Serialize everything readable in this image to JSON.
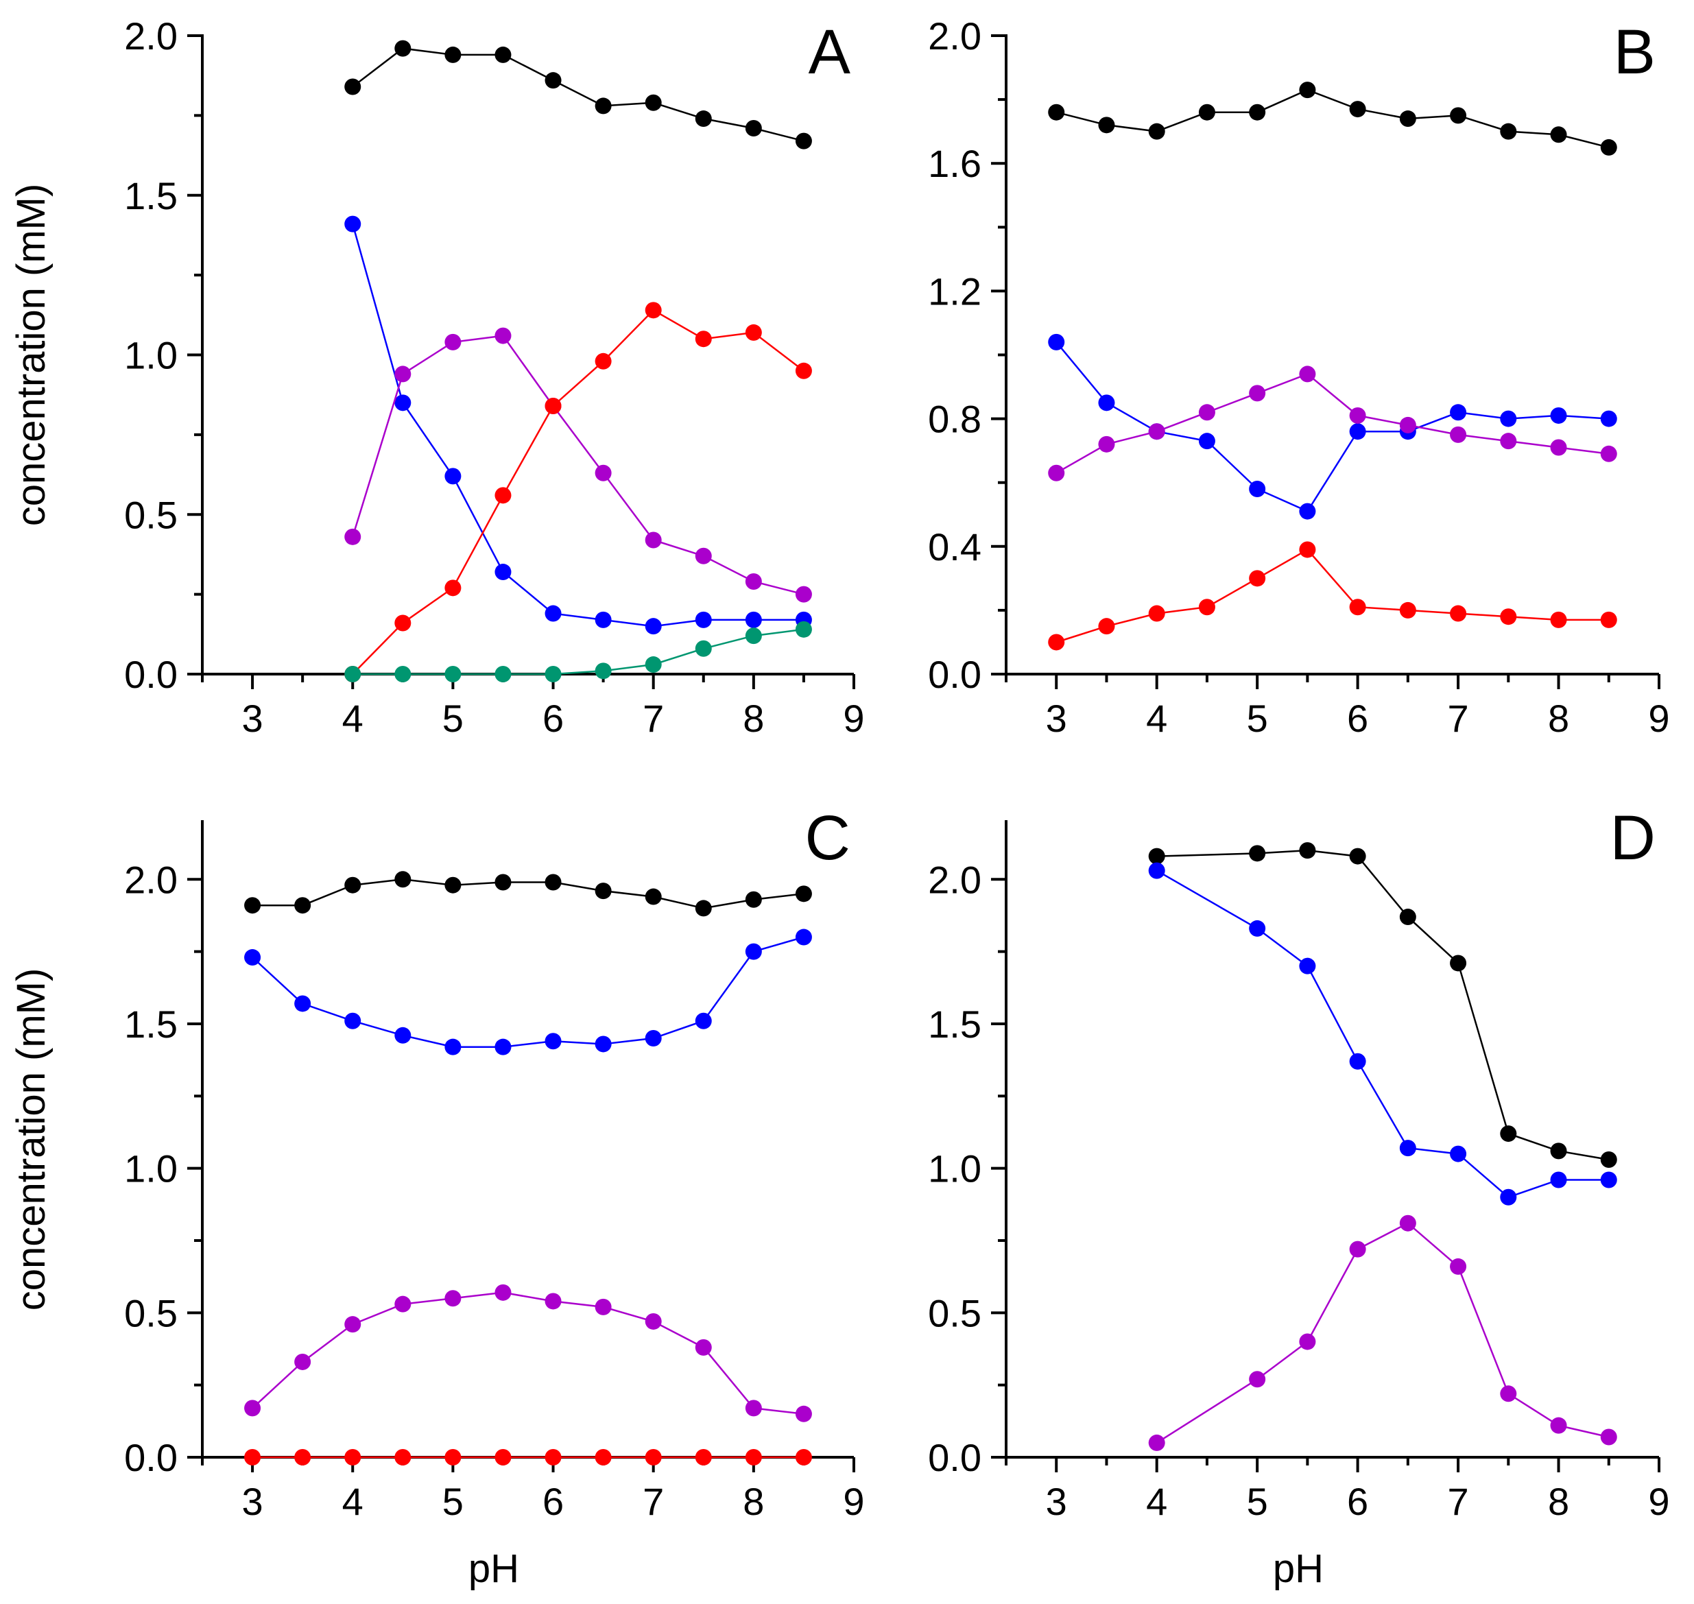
{
  "colors": {
    "black": "#000000",
    "blue": "#0000ff",
    "magenta": "#aa00cc",
    "red": "#ff0000",
    "green": "#009670"
  },
  "chart_data": [
    {
      "panel": "A",
      "type": "line",
      "xlabel": "",
      "ylabel": "concentration (mM)",
      "xlim": [
        2.5,
        9
      ],
      "ylim": [
        0,
        2
      ],
      "xticks": [
        "3",
        "4",
        "5",
        "6",
        "7",
        "8",
        "9"
      ],
      "yticks": [
        "0.0",
        "0.5",
        "1.0",
        "1.5",
        "2.0"
      ],
      "series": [
        {
          "color": "black",
          "x": [
            4,
            4.5,
            5,
            5.5,
            6,
            6.5,
            7,
            7.5,
            8,
            8.5
          ],
          "values": [
            1.84,
            1.96,
            1.94,
            1.94,
            1.86,
            1.78,
            1.79,
            1.74,
            1.71,
            1.67
          ]
        },
        {
          "color": "blue",
          "x": [
            4,
            4.5,
            5,
            5.5,
            6,
            6.5,
            7,
            7.5,
            8,
            8.5
          ],
          "values": [
            1.41,
            0.85,
            0.62,
            0.32,
            0.19,
            0.17,
            0.15,
            0.17,
            0.17,
            0.17
          ]
        },
        {
          "color": "magenta",
          "x": [
            4,
            4.5,
            5,
            5.5,
            6,
            6.5,
            7,
            7.5,
            8,
            8.5
          ],
          "values": [
            0.43,
            0.94,
            1.04,
            1.06,
            0.84,
            0.63,
            0.42,
            0.37,
            0.29,
            0.25
          ]
        },
        {
          "color": "red",
          "x": [
            4,
            4.5,
            5,
            5.5,
            6,
            6.5,
            7,
            7.5,
            8,
            8.5
          ],
          "values": [
            0.0,
            0.16,
            0.27,
            0.56,
            0.84,
            0.98,
            1.14,
            1.05,
            1.07,
            0.95
          ]
        },
        {
          "color": "green",
          "x": [
            4,
            4.5,
            5,
            5.5,
            6,
            6.5,
            7,
            7.5,
            8,
            8.5
          ],
          "values": [
            0.0,
            0.0,
            0.0,
            0.0,
            0.0,
            0.01,
            0.03,
            0.08,
            0.12,
            0.14
          ]
        }
      ]
    },
    {
      "panel": "B",
      "type": "line",
      "xlabel": "",
      "ylabel": "",
      "xlim": [
        2.5,
        9
      ],
      "ylim": [
        0,
        2
      ],
      "xticks": [
        "3",
        "4",
        "5",
        "6",
        "7",
        "8",
        "9"
      ],
      "yticks": [
        "0.0",
        "0.4",
        "0.8",
        "1.2",
        "1.6",
        "2.0"
      ],
      "series": [
        {
          "color": "black",
          "x": [
            3,
            3.5,
            4,
            4.5,
            5,
            5.5,
            6,
            6.5,
            7,
            7.5,
            8,
            8.5
          ],
          "values": [
            1.76,
            1.72,
            1.7,
            1.76,
            1.76,
            1.83,
            1.77,
            1.74,
            1.75,
            1.7,
            1.69,
            1.65
          ]
        },
        {
          "color": "blue",
          "x": [
            3,
            3.5,
            4,
            4.5,
            5,
            5.5,
            6,
            6.5,
            7,
            7.5,
            8,
            8.5
          ],
          "values": [
            1.04,
            0.85,
            0.76,
            0.73,
            0.58,
            0.51,
            0.76,
            0.76,
            0.82,
            0.8,
            0.81,
            0.8
          ]
        },
        {
          "color": "magenta",
          "x": [
            3,
            3.5,
            4,
            4.5,
            5,
            5.5,
            6,
            6.5,
            7,
            7.5,
            8,
            8.5
          ],
          "values": [
            0.63,
            0.72,
            0.76,
            0.82,
            0.88,
            0.94,
            0.81,
            0.78,
            0.75,
            0.73,
            0.71,
            0.69
          ]
        },
        {
          "color": "red",
          "x": [
            3,
            3.5,
            4,
            4.5,
            5,
            5.5,
            6,
            6.5,
            7,
            7.5,
            8,
            8.5
          ],
          "values": [
            0.1,
            0.15,
            0.19,
            0.21,
            0.3,
            0.39,
            0.21,
            0.2,
            0.19,
            0.18,
            0.17,
            0.17
          ]
        }
      ]
    },
    {
      "panel": "C",
      "type": "line",
      "xlabel": "pH",
      "ylabel": "concentration (mM)",
      "xlim": [
        2.5,
        9
      ],
      "ylim": [
        0,
        2.2
      ],
      "xticks": [
        "3",
        "4",
        "5",
        "6",
        "7",
        "8",
        "9"
      ],
      "yticks": [
        "0.0",
        "0.5",
        "1.0",
        "1.5",
        "2.0"
      ],
      "series": [
        {
          "color": "black",
          "x": [
            3,
            3.5,
            4,
            4.5,
            5,
            5.5,
            6,
            6.5,
            7,
            7.5,
            8,
            8.5
          ],
          "values": [
            1.91,
            1.91,
            1.98,
            2.0,
            1.98,
            1.99,
            1.99,
            1.96,
            1.94,
            1.9,
            1.93,
            1.95
          ]
        },
        {
          "color": "blue",
          "x": [
            3,
            3.5,
            4,
            4.5,
            5,
            5.5,
            6,
            6.5,
            7,
            7.5,
            8,
            8.5
          ],
          "values": [
            1.73,
            1.57,
            1.51,
            1.46,
            1.42,
            1.42,
            1.44,
            1.43,
            1.45,
            1.51,
            1.75,
            1.8
          ]
        },
        {
          "color": "magenta",
          "x": [
            3,
            3.5,
            4,
            4.5,
            5,
            5.5,
            6,
            6.5,
            7,
            7.5,
            8,
            8.5
          ],
          "values": [
            0.17,
            0.33,
            0.46,
            0.53,
            0.55,
            0.57,
            0.54,
            0.52,
            0.47,
            0.38,
            0.17,
            0.15
          ]
        },
        {
          "color": "red",
          "x": [
            3,
            3.5,
            4,
            4.5,
            5,
            5.5,
            6,
            6.5,
            7,
            7.5,
            8,
            8.5
          ],
          "values": [
            0.0,
            0.0,
            0.0,
            0.0,
            0.0,
            0.0,
            0.0,
            0.0,
            0.0,
            0.0,
            0.0,
            0.0
          ]
        }
      ]
    },
    {
      "panel": "D",
      "type": "line",
      "xlabel": "pH",
      "ylabel": "",
      "xlim": [
        2.5,
        9
      ],
      "ylim": [
        0,
        2.2
      ],
      "xticks": [
        "3",
        "4",
        "5",
        "6",
        "7",
        "8",
        "9"
      ],
      "yticks": [
        "0.0",
        "0.5",
        "1.0",
        "1.5",
        "2.0"
      ],
      "series": [
        {
          "color": "black",
          "x": [
            4,
            5,
            5.5,
            6,
            6.5,
            7,
            7.5,
            8,
            8.5
          ],
          "values": [
            2.08,
            2.09,
            2.1,
            2.08,
            1.87,
            1.71,
            1.12,
            1.06,
            1.03
          ]
        },
        {
          "color": "blue",
          "x": [
            4,
            5,
            5.5,
            6,
            6.5,
            7,
            7.5,
            8,
            8.5
          ],
          "values": [
            2.03,
            1.83,
            1.7,
            1.37,
            1.07,
            1.05,
            0.9,
            0.96,
            0.96
          ]
        },
        {
          "color": "magenta",
          "x": [
            4,
            5,
            5.5,
            6,
            6.5,
            7,
            7.5,
            8,
            8.5
          ],
          "values": [
            0.05,
            0.27,
            0.4,
            0.72,
            0.81,
            0.66,
            0.22,
            0.11,
            0.07
          ]
        }
      ]
    }
  ]
}
